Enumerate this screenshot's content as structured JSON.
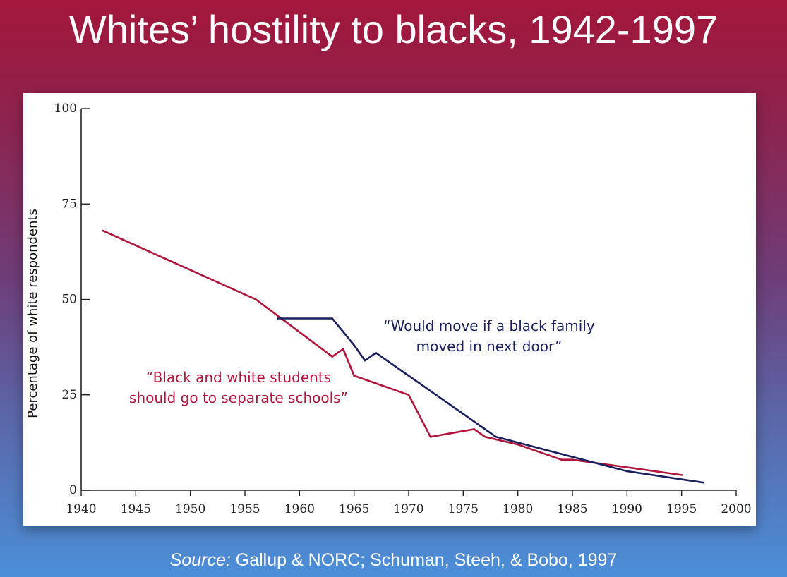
{
  "slide": {
    "title": "Whites’ hostility to blacks, 1942-1997",
    "source_prefix": "Source:",
    "source_text": " Gallup & NORC; Schuman, Steeh, & Bobo, 1997"
  },
  "chart_data": {
    "type": "line",
    "title": "",
    "xlabel": "",
    "ylabel": "Percentage of white respondents",
    "xlim": [
      1940,
      2000
    ],
    "ylim": [
      0,
      100
    ],
    "xticks": [
      "1940",
      "1945",
      "1950",
      "1955",
      "1960",
      "1965",
      "1970",
      "1975",
      "1980",
      "1985",
      "1990",
      "1995",
      "2000"
    ],
    "yticks": [
      "0",
      "25",
      "50",
      "75",
      "100"
    ],
    "grid": false,
    "legend": "none",
    "series": [
      {
        "name": "“Black and white students should go to separate schools”",
        "label_lines": [
          "“Black and white students",
          "should go to separate schools”"
        ],
        "color": "#b0163c",
        "x": [
          1942,
          1956,
          1963,
          1964,
          1965,
          1970,
          1972,
          1976,
          1977,
          1980,
          1984,
          1985,
          1990,
          1995
        ],
        "y": [
          68,
          50,
          35,
          37,
          30,
          25,
          14,
          16,
          14,
          12,
          8,
          8,
          6,
          4
        ]
      },
      {
        "name": "“Would move if a black family moved in next door”",
        "label_lines": [
          "“Would move if a black family",
          "moved in next door”"
        ],
        "color": "#1a1f5e",
        "x": [
          1958,
          1963,
          1965,
          1966,
          1967,
          1978,
          1990,
          1997
        ],
        "y": [
          45,
          45,
          38,
          34,
          36,
          14,
          5,
          2
        ]
      }
    ]
  }
}
